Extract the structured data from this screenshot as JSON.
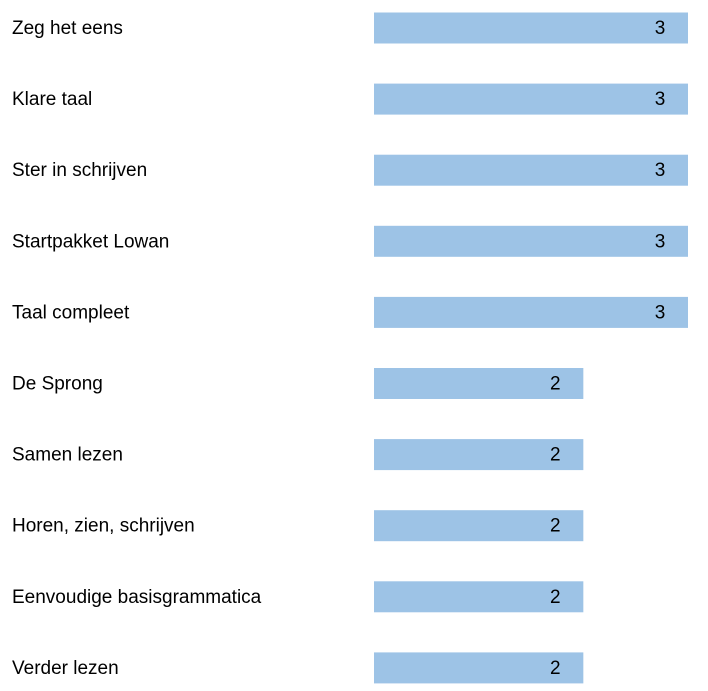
{
  "chart_data": {
    "type": "bar",
    "orientation": "horizontal",
    "categories": [
      "Zeg het eens",
      "Klare taal",
      "Ster in schrijven",
      "Startpakket Lowan",
      "Taal compleet",
      "De Sprong",
      "Samen lezen",
      "Horen, zien, schrijven",
      "Eenvoudige basisgrammatica",
      "Verder lezen"
    ],
    "values": [
      3,
      3,
      3,
      3,
      3,
      2,
      2,
      2,
      2,
      2
    ],
    "color": "#9dc3e6",
    "xlim": [
      0,
      3
    ]
  }
}
